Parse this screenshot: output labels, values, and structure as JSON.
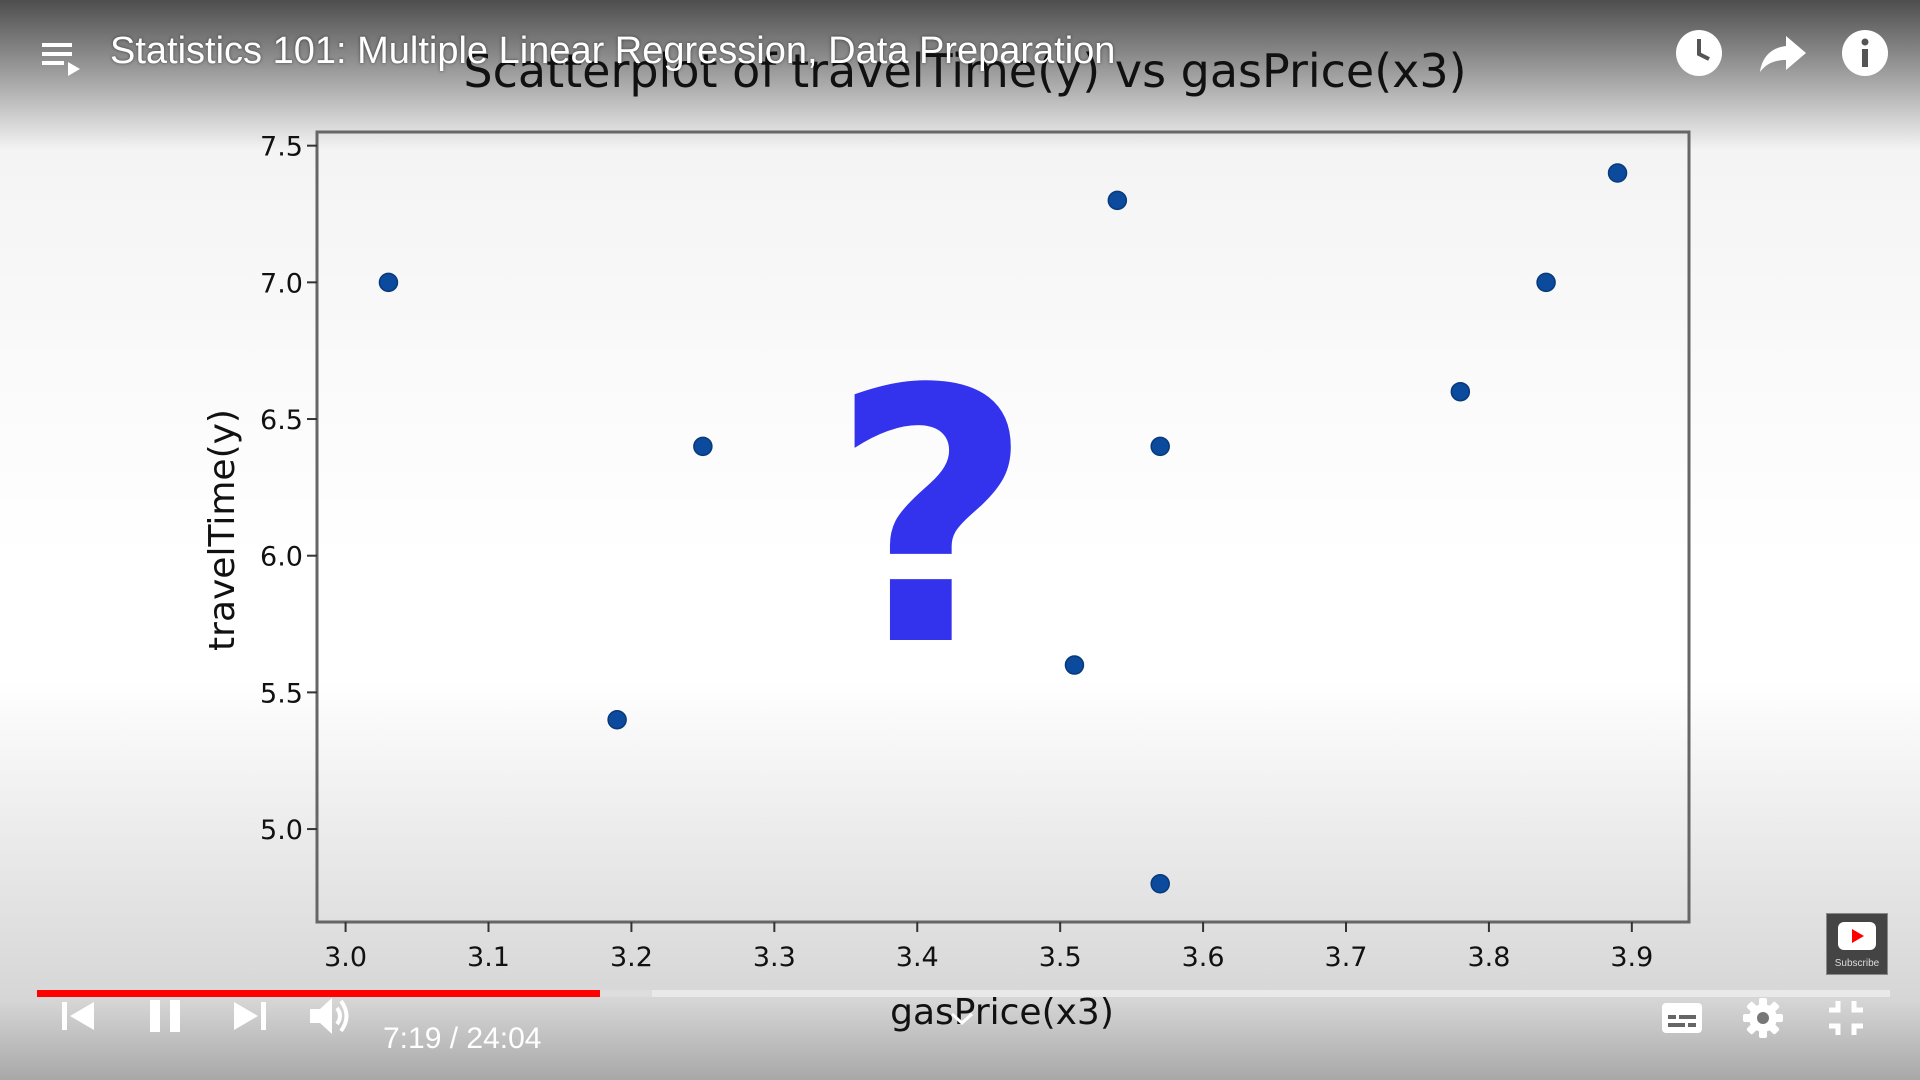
{
  "player": {
    "video_title": "Statistics 101: Multiple Linear Regression, Data Preparation",
    "current_time": "7:19",
    "separator": " / ",
    "duration": "24:04",
    "progress_played_fraction": 0.304,
    "progress_buffered_fraction": 0.332,
    "subscribe_label": "Subscribe",
    "accent_color": "#ff0000"
  },
  "icons": {
    "playlist": "playlist-icon",
    "watch_later": "clock-icon",
    "share": "share-icon",
    "info": "info-icon",
    "previous": "skip-previous-icon",
    "pause": "pause-icon",
    "next": "skip-next-icon",
    "volume": "volume-icon",
    "subtitles": "subtitles-icon",
    "settings": "gear-icon",
    "exit_fullscreen": "exit-fullscreen-icon",
    "expand": "chevron-down-icon"
  },
  "overlay": {
    "symbol": "?",
    "color": "#3333ee"
  },
  "chart_data": {
    "type": "scatter",
    "title": "Scatterplot of travelTime(y) vs gasPrice(x3)",
    "xlabel": "gasPrice(x3)",
    "ylabel": "travelTime(y)",
    "xlim": [
      2.98,
      3.94
    ],
    "ylim": [
      4.66,
      7.55
    ],
    "xticks": [
      "3.0",
      "3.1",
      "3.2",
      "3.3",
      "3.4",
      "3.5",
      "3.6",
      "3.7",
      "3.8",
      "3.9"
    ],
    "yticks": [
      "5.0",
      "5.5",
      "6.0",
      "6.5",
      "7.0",
      "7.5"
    ],
    "grid": false,
    "point_color": "#0b4a9c",
    "points": [
      {
        "x": 3.03,
        "y": 7.0
      },
      {
        "x": 3.19,
        "y": 5.4
      },
      {
        "x": 3.25,
        "y": 6.4
      },
      {
        "x": 3.51,
        "y": 5.6
      },
      {
        "x": 3.54,
        "y": 7.3
      },
      {
        "x": 3.57,
        "y": 6.4
      },
      {
        "x": 3.57,
        "y": 4.8
      },
      {
        "x": 3.78,
        "y": 6.6
      },
      {
        "x": 3.84,
        "y": 7.0
      },
      {
        "x": 3.89,
        "y": 7.4
      }
    ]
  }
}
